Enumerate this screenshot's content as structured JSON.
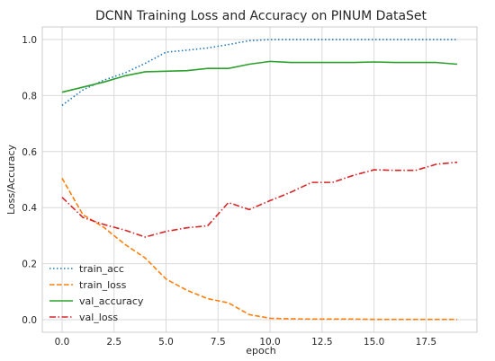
{
  "chart_data": {
    "type": "line",
    "title": "DCNN Training Loss and Accuracy on PINUM DataSet",
    "xlabel": "epoch",
    "ylabel": "Loss/Accuracy",
    "xlim": [
      -0.95,
      19.95
    ],
    "ylim": [
      -0.045,
      1.045
    ],
    "xticks": [
      0.0,
      2.5,
      5.0,
      7.5,
      10.0,
      12.5,
      15.0,
      17.5
    ],
    "xtick_labels": [
      "0.0",
      "2.5",
      "5.0",
      "7.5",
      "10.0",
      "12.5",
      "15.0",
      "17.5"
    ],
    "yticks": [
      0.0,
      0.2,
      0.4,
      0.6,
      0.8,
      1.0
    ],
    "ytick_labels": [
      "0.0",
      "0.2",
      "0.4",
      "0.6",
      "0.8",
      "1.0"
    ],
    "grid": true,
    "legend_position": "lower-left",
    "x": [
      0,
      1,
      2,
      3,
      4,
      5,
      6,
      7,
      8,
      9,
      10,
      11,
      12,
      13,
      14,
      15,
      16,
      17,
      18,
      19
    ],
    "series": [
      {
        "name": "train_acc",
        "color": "#1f77b4",
        "dash": "dotted",
        "values": [
          0.765,
          0.82,
          0.855,
          0.88,
          0.915,
          0.955,
          0.962,
          0.97,
          0.982,
          0.996,
          1.0,
          1.0,
          1.0,
          1.0,
          1.0,
          1.0,
          1.0,
          1.0,
          1.0,
          1.0
        ]
      },
      {
        "name": "train_loss",
        "color": "#ff7f0e",
        "dash": "dashed",
        "values": [
          0.505,
          0.375,
          0.33,
          0.27,
          0.22,
          0.145,
          0.105,
          0.075,
          0.06,
          0.018,
          0.005,
          0.003,
          0.002,
          0.002,
          0.002,
          0.001,
          0.001,
          0.001,
          0.001,
          0.001
        ]
      },
      {
        "name": "val_accuracy",
        "color": "#2ca02c",
        "dash": "solid",
        "values": [
          0.812,
          0.83,
          0.848,
          0.87,
          0.885,
          0.887,
          0.889,
          0.897,
          0.897,
          0.912,
          0.922,
          0.918,
          0.918,
          0.918,
          0.918,
          0.92,
          0.918,
          0.918,
          0.918,
          0.912
        ]
      },
      {
        "name": "val_loss",
        "color": "#d62728",
        "dash": "dashdot",
        "values": [
          0.437,
          0.365,
          0.34,
          0.32,
          0.295,
          0.315,
          0.328,
          0.335,
          0.418,
          0.393,
          0.425,
          0.455,
          0.49,
          0.49,
          0.515,
          0.535,
          0.533,
          0.533,
          0.555,
          0.562
        ]
      }
    ]
  }
}
